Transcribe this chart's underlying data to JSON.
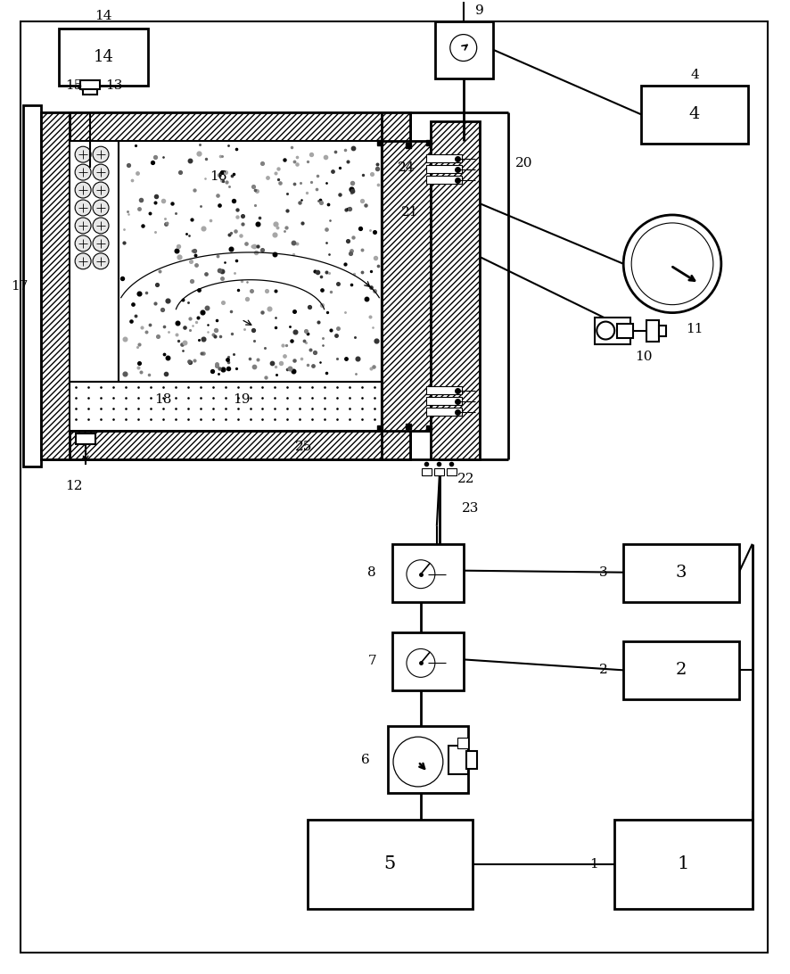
{
  "bg_color": "#ffffff",
  "lw": 1.5,
  "lw2": 2.0,
  "lw3": 1.0
}
